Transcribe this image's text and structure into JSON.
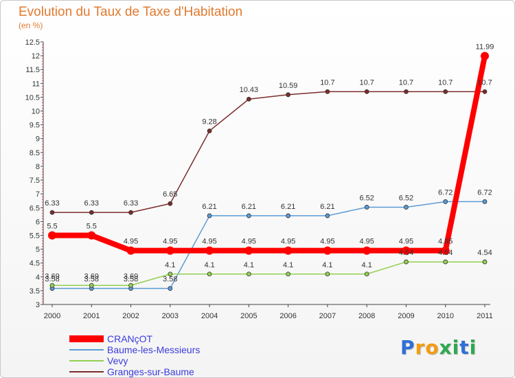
{
  "chart_data": {
    "type": "line",
    "title": "Evolution du Taux de Taxe d'Habitation",
    "subtitle": "(en %)",
    "xlabel": "",
    "ylabel": "",
    "x": [
      "2000",
      "2001",
      "2002",
      "2003",
      "2004",
      "2005",
      "2006",
      "2007",
      "2008",
      "2009",
      "2010",
      "2011"
    ],
    "ylim": [
      3,
      12.5
    ],
    "yticks": [
      "3",
      "3.5",
      "4",
      "4.5",
      "5",
      "5.5",
      "6",
      "6.5",
      "7",
      "7.5",
      "8",
      "8.5",
      "9",
      "9.5",
      "10",
      "10.5",
      "11",
      "11.5",
      "12",
      "12.5"
    ],
    "grid": false,
    "legend_position": "bottom-left",
    "series": [
      {
        "name": "CRANçOT",
        "color": "#ff0000",
        "values": [
          5.5,
          5.5,
          4.95,
          4.95,
          4.95,
          4.95,
          4.95,
          4.95,
          4.95,
          4.95,
          4.95,
          11.99
        ],
        "labels": [
          "5.5",
          "5.5",
          "4.95",
          "4.95",
          "4.95",
          "4.95",
          "4.95",
          "4.95",
          "4.95",
          "4.95",
          "4.95",
          "11.99"
        ]
      },
      {
        "name": "Baume-les-Messieurs",
        "color": "#5b9bd5",
        "values": [
          3.58,
          3.58,
          3.58,
          3.58,
          6.21,
          6.21,
          6.21,
          6.21,
          6.52,
          6.52,
          6.72,
          6.72
        ],
        "labels": [
          "3.58",
          "3.58",
          "3.58",
          "3.58",
          "6.21",
          "6.21",
          "6.21",
          "6.21",
          "6.52",
          "6.52",
          "6.72",
          "6.72"
        ]
      },
      {
        "name": "Vevy",
        "color": "#92d050",
        "values": [
          3.69,
          3.69,
          3.69,
          4.1,
          4.1,
          4.1,
          4.1,
          4.1,
          4.1,
          4.54,
          4.54,
          4.54
        ],
        "labels": [
          "3.69",
          "3.69",
          "3.69",
          "4.1",
          "4.1",
          "4.1",
          "4.1",
          "4.1",
          "4.1",
          "4.54",
          "4.54",
          "4.54"
        ]
      },
      {
        "name": "Granges-sur-Baume",
        "color": "#7b2c2c",
        "values": [
          6.33,
          6.33,
          6.33,
          6.65,
          9.28,
          10.43,
          10.59,
          10.7,
          10.7,
          10.7,
          10.7,
          10.7
        ],
        "labels": [
          "6.33",
          "6.33",
          "6.33",
          "6.65",
          "9.28",
          "10.43",
          "10.59",
          "10.7",
          "10.7",
          "10.7",
          "10.7",
          "10.7"
        ]
      }
    ]
  },
  "logo": {
    "letters": [
      "P",
      "r",
      "o",
      "x",
      "i",
      "t",
      "i"
    ],
    "colors": [
      "#2f6fd6",
      "#f39c12",
      "#f39c12",
      "#2fa84f",
      "#2fa84f",
      "#2f6fd6",
      "#2fa84f"
    ]
  }
}
